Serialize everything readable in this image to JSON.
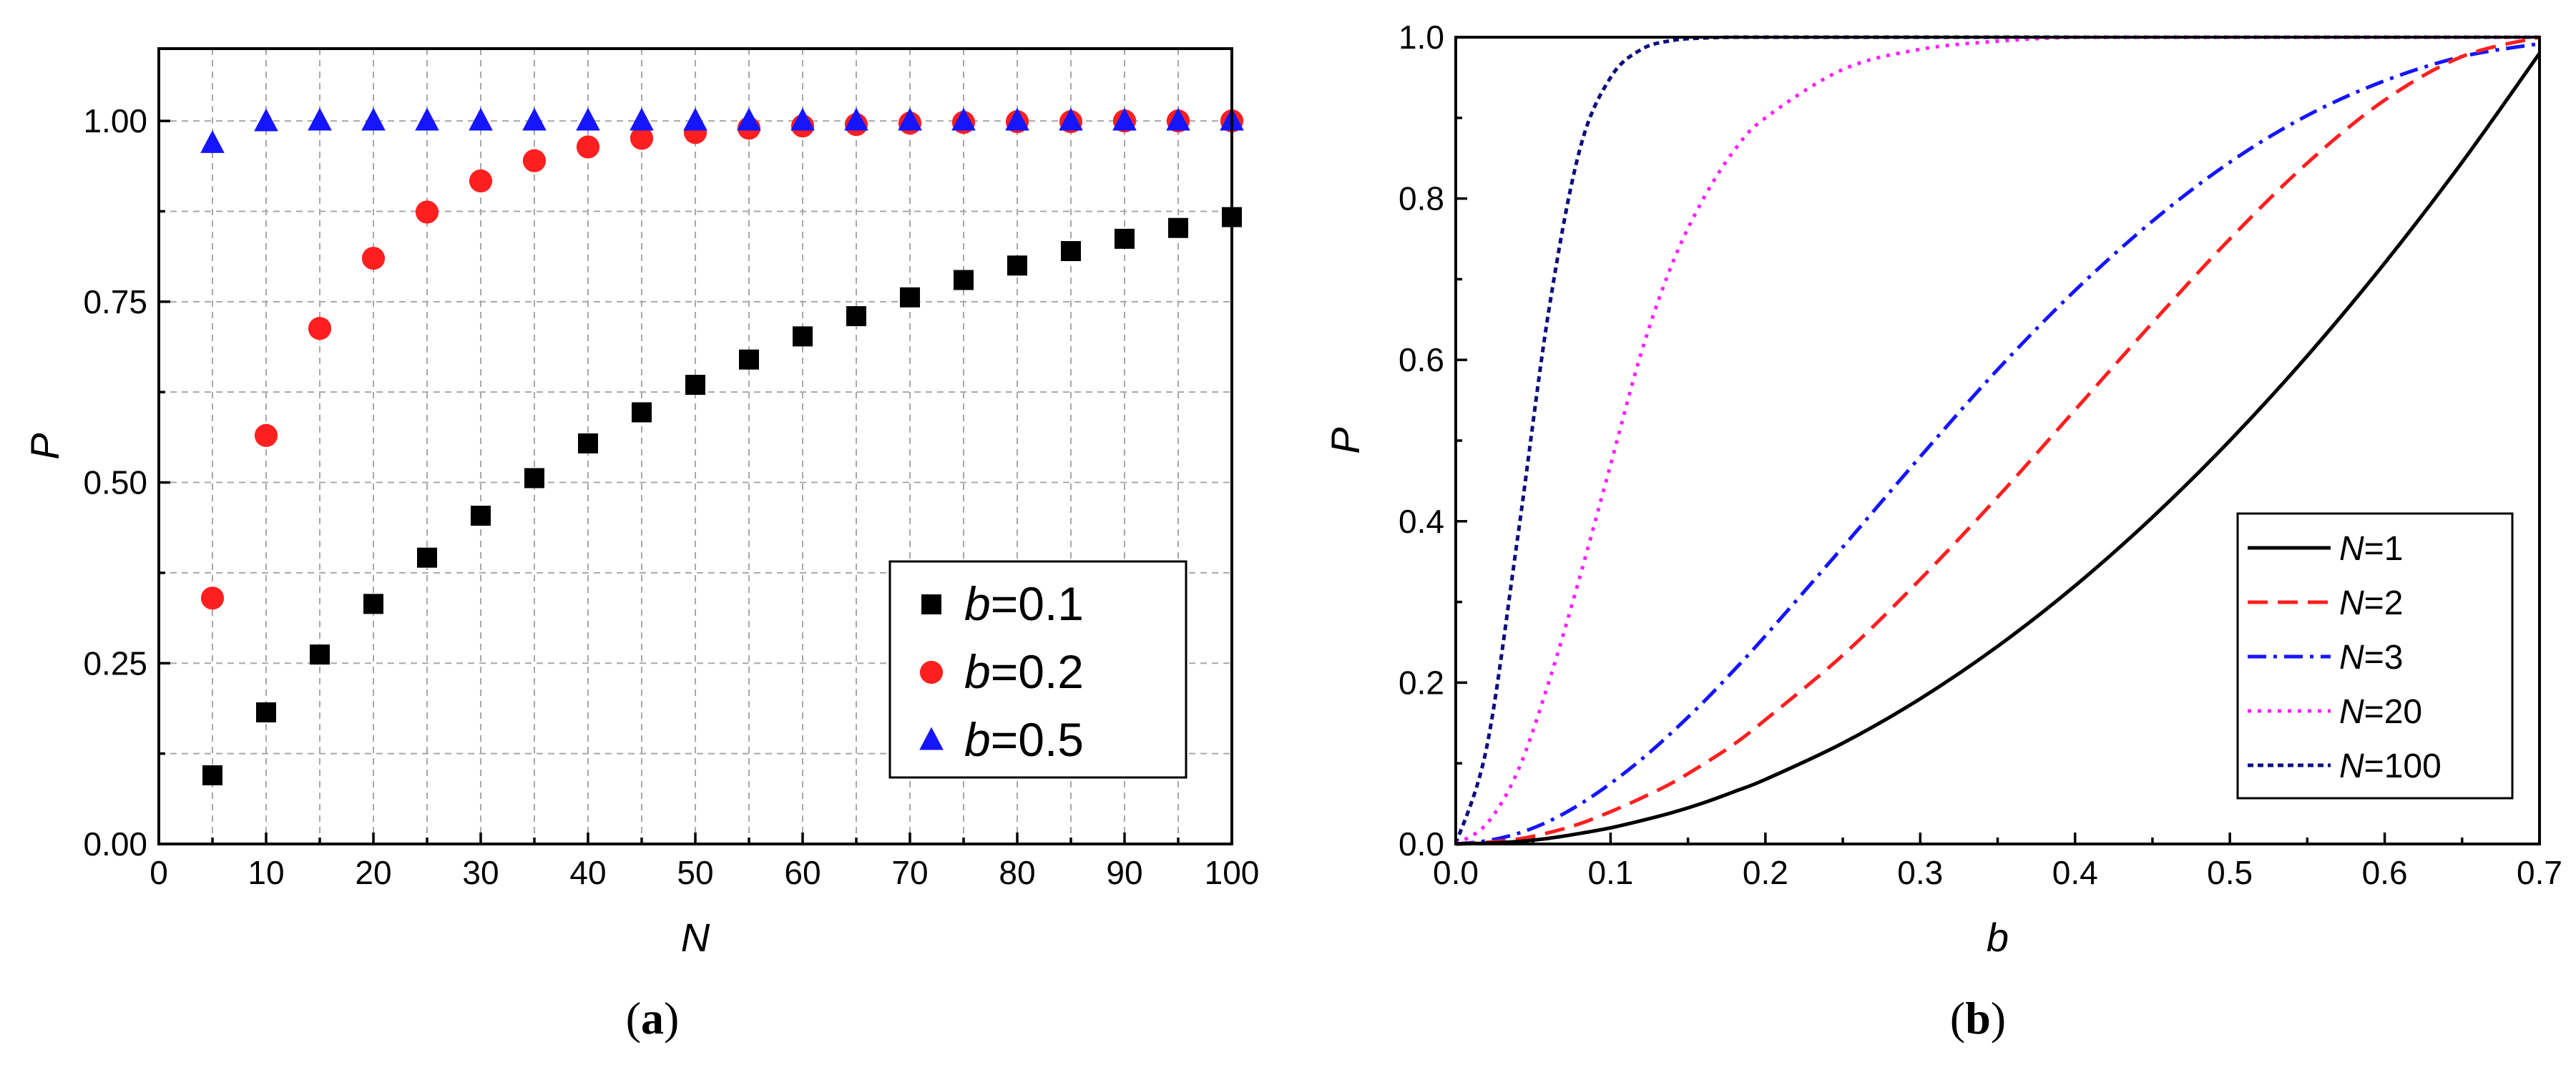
{
  "chart_data": [
    {
      "panel": "a",
      "caption": {
        "open": "(",
        "letter": "a",
        "close": ")"
      },
      "type": "scatter",
      "xlabel": "N",
      "ylabel": "P",
      "xlim": [
        0,
        100
      ],
      "ylim": [
        0,
        1.1
      ],
      "xticks": [
        0,
        10,
        20,
        30,
        40,
        50,
        60,
        70,
        80,
        90,
        100
      ],
      "yticks": [
        0,
        0.25,
        0.5,
        0.75,
        1.0
      ],
      "ytick_labels": [
        "0.00",
        "0.25",
        "0.50",
        "0.75",
        "1.00"
      ],
      "grid": true,
      "legend_position": "bottom-right",
      "x": [
        5,
        10,
        15,
        20,
        25,
        30,
        35,
        40,
        45,
        50,
        55,
        60,
        65,
        70,
        75,
        80,
        85,
        90,
        95,
        100
      ],
      "series": [
        {
          "name": "b=0.1",
          "var": "b",
          "val": "=0.1",
          "marker": "square",
          "color": "#000000",
          "values": [
            0.095,
            0.182,
            0.262,
            0.332,
            0.396,
            0.454,
            0.506,
            0.554,
            0.597,
            0.635,
            0.67,
            0.702,
            0.73,
            0.756,
            0.78,
            0.8,
            0.82,
            0.837,
            0.852,
            0.867
          ]
        },
        {
          "name": "b=0.2",
          "var": "b",
          "val": "=0.2",
          "marker": "circle",
          "color": "#ff1f1f",
          "values": [
            0.34,
            0.565,
            0.713,
            0.81,
            0.874,
            0.917,
            0.945,
            0.964,
            0.976,
            0.984,
            0.99,
            0.993,
            0.995,
            0.997,
            0.998,
            0.999,
            0.999,
            1.0,
            1.0,
            1.0
          ]
        },
        {
          "name": "b=0.5",
          "var": "b",
          "val": "=0.5",
          "marker": "triangle",
          "color": "#1515ff",
          "values": [
            0.969,
            0.999,
            1.0,
            1.0,
            1.0,
            1.0,
            1.0,
            1.0,
            1.0,
            1.0,
            1.0,
            1.0,
            1.0,
            1.0,
            1.0,
            1.0,
            1.0,
            1.0,
            1.0,
            1.0
          ]
        }
      ]
    },
    {
      "panel": "b",
      "caption": {
        "open": "(",
        "letter": "b",
        "close": ")"
      },
      "type": "line",
      "xlabel": "b",
      "ylabel": "P",
      "xlim": [
        0,
        0.7
      ],
      "ylim": [
        0,
        1.0
      ],
      "xticks": [
        0,
        0.1,
        0.2,
        0.3,
        0.4,
        0.5,
        0.6,
        0.7
      ],
      "xtick_labels": [
        "0.0",
        "0.1",
        "0.2",
        "0.3",
        "0.4",
        "0.5",
        "0.6",
        "0.7"
      ],
      "yticks": [
        0,
        0.2,
        0.4,
        0.6,
        0.8,
        1.0
      ],
      "ytick_labels": [
        "0.0",
        "0.2",
        "0.4",
        "0.6",
        "0.8",
        "1.0"
      ],
      "grid": false,
      "legend_position": "bottom-right",
      "x": [
        0,
        0.02,
        0.04,
        0.06,
        0.08,
        0.1,
        0.12,
        0.14,
        0.16,
        0.18,
        0.2,
        0.25,
        0.3,
        0.35,
        0.4,
        0.45,
        0.5,
        0.55,
        0.6,
        0.65,
        0.7
      ],
      "series": [
        {
          "name": "N=1",
          "var": "N",
          "val": "=1",
          "color": "#000000",
          "dash": "",
          "values": [
            0,
            0.001,
            0.003,
            0.007,
            0.013,
            0.02,
            0.029,
            0.039,
            0.051,
            0.065,
            0.08,
            0.125,
            0.18,
            0.245,
            0.32,
            0.405,
            0.5,
            0.605,
            0.72,
            0.845,
            0.98
          ]
        },
        {
          "name": "N=2",
          "var": "N",
          "val": "=2",
          "color": "#ff1f1f",
          "dash": "28 14",
          "values": [
            0,
            0.002,
            0.006,
            0.014,
            0.025,
            0.04,
            0.057,
            0.076,
            0.099,
            0.124,
            0.154,
            0.234,
            0.328,
            0.43,
            0.538,
            0.646,
            0.75,
            0.844,
            0.922,
            0.976,
            1.0
          ]
        },
        {
          "name": "N=3",
          "var": "N",
          "val": "=3",
          "color": "#1515ff",
          "dash": "26 10 5 10",
          "values": [
            0,
            0.004,
            0.013,
            0.028,
            0.049,
            0.075,
            0.105,
            0.139,
            0.176,
            0.216,
            0.258,
            0.368,
            0.48,
            0.588,
            0.686,
            0.772,
            0.845,
            0.903,
            0.946,
            0.976,
            0.992
          ]
        },
        {
          "name": "N=20",
          "var": "N",
          "val": "=20",
          "color": "#ff1fff",
          "dash": "5 9",
          "values": [
            0,
            0.025,
            0.09,
            0.2,
            0.33,
            0.47,
            0.61,
            0.72,
            0.8,
            0.86,
            0.9,
            0.96,
            0.985,
            0.995,
            1.0,
            1.0,
            1.0,
            1.0,
            1.0,
            1.0,
            1.0
          ]
        },
        {
          "name": "N=100",
          "var": "N",
          "val": "=100",
          "color": "#0d0d80",
          "dash": "8 6",
          "values": [
            0,
            0.12,
            0.38,
            0.66,
            0.86,
            0.95,
            0.985,
            0.996,
            0.999,
            1.0,
            1.0,
            1.0,
            1.0,
            1.0,
            1.0,
            1.0,
            1.0,
            1.0,
            1.0,
            1.0,
            1.0
          ]
        }
      ]
    }
  ]
}
